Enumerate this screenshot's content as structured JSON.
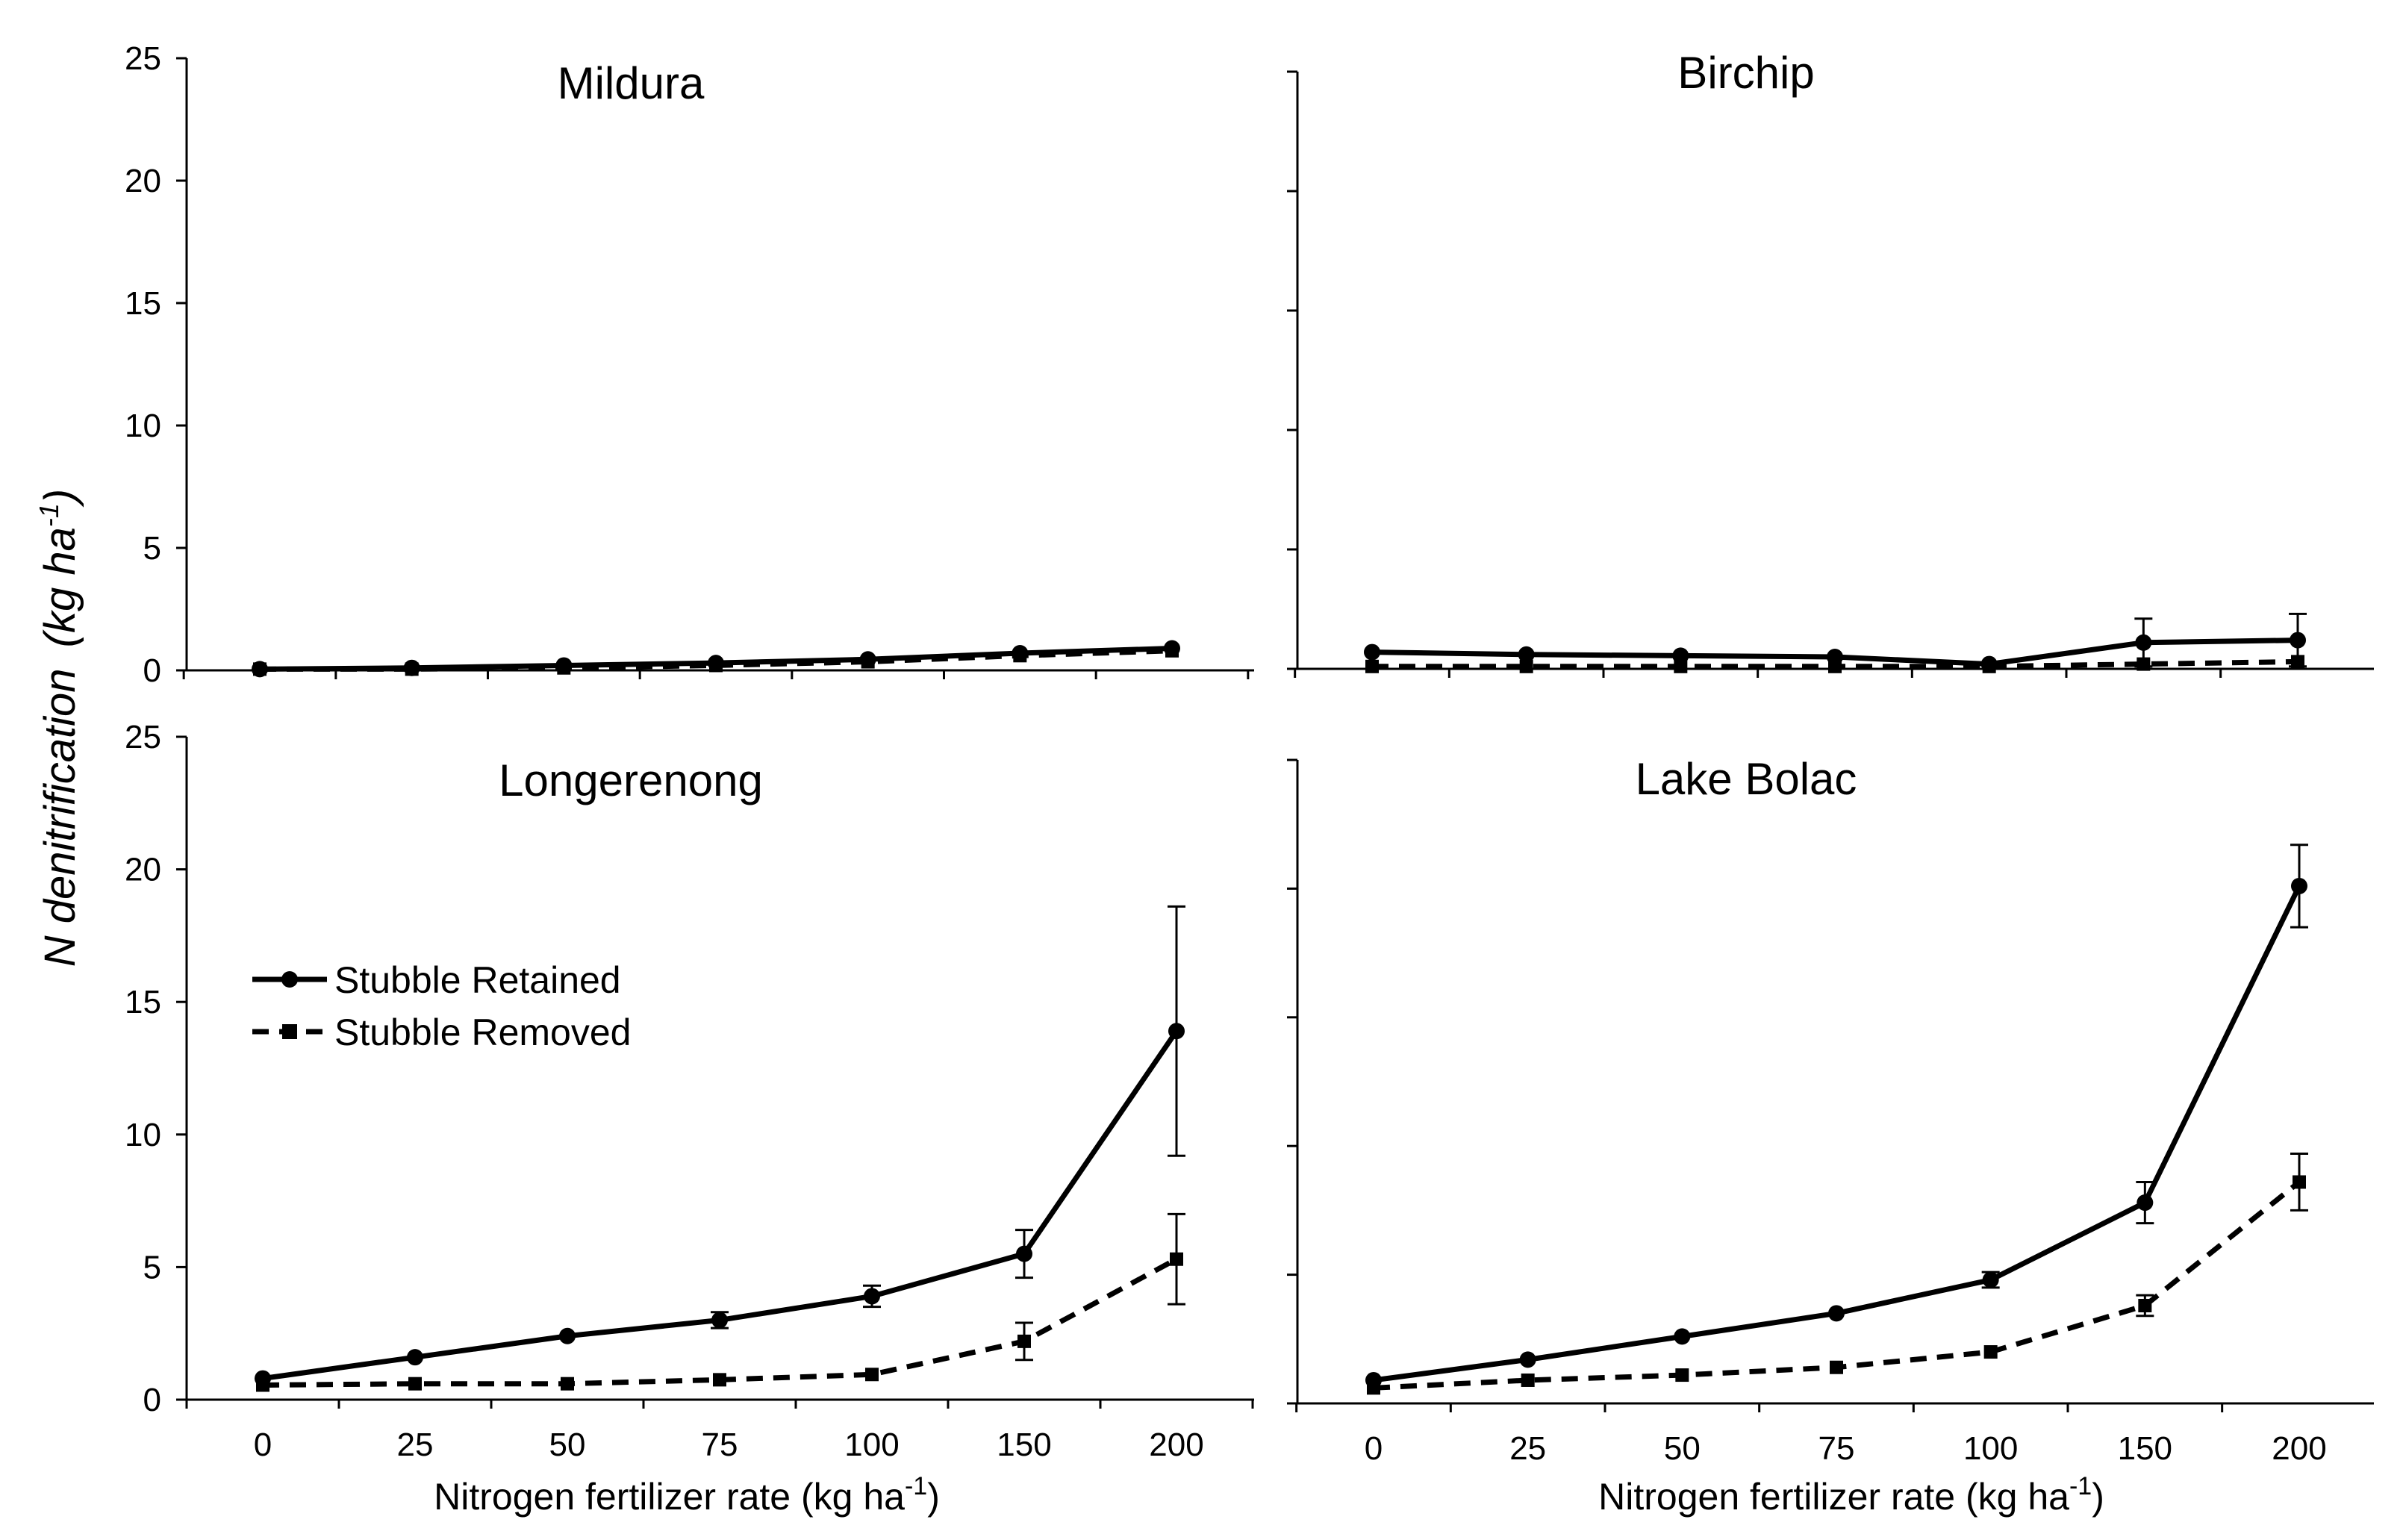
{
  "chart_data": {
    "type": "line",
    "ylabel": "N denitrification",
    "ylabel_unit": "(kg ha",
    "ylabel_sup": "-1",
    "ylabel_close": ")",
    "xlabel": "Nitrogen fertilizer rate (kg ha",
    "xlabel_sup": "-1",
    "xlabel_close": ")",
    "x_categories": [
      "0",
      "25",
      "50",
      "75",
      "100",
      "150",
      "200"
    ],
    "y_ticks": [
      0,
      5,
      10,
      15,
      20,
      25
    ],
    "ylim": [
      0,
      25
    ],
    "legend": [
      {
        "name": "Stubble Retained",
        "marker": "circle",
        "line": "solid"
      },
      {
        "name": "Stubble Removed",
        "marker": "square",
        "line": "dashed"
      }
    ],
    "panels": [
      {
        "title": "Mildura",
        "series": [
          {
            "name": "Stubble Retained",
            "values": [
              0.05,
              0.1,
              0.2,
              0.3,
              0.45,
              0.7,
              0.9
            ],
            "errors": [
              0,
              0,
              0,
              0,
              0,
              0,
              0
            ]
          },
          {
            "name": "Stubble Removed",
            "values": [
              0.05,
              0.05,
              0.1,
              0.2,
              0.35,
              0.6,
              0.8
            ],
            "errors": [
              0,
              0,
              0,
              0,
              0,
              0,
              0
            ]
          }
        ]
      },
      {
        "title": "Birchip",
        "series": [
          {
            "name": "Stubble Retained",
            "values": [
              0.7,
              0.6,
              0.55,
              0.5,
              0.2,
              1.1,
              1.2
            ],
            "errors": [
              0,
              0,
              0,
              0,
              0,
              1.0,
              1.1
            ]
          },
          {
            "name": "Stubble Removed",
            "values": [
              0.1,
              0.1,
              0.1,
              0.1,
              0.1,
              0.2,
              0.3
            ],
            "errors": [
              0,
              0,
              0,
              0,
              0,
              0,
              0
            ]
          }
        ]
      },
      {
        "title": "Longerenong",
        "series": [
          {
            "name": "Stubble Retained",
            "values": [
              0.8,
              1.6,
              2.4,
              3.0,
              3.9,
              5.5,
              13.9
            ],
            "errors": [
              0,
              0,
              0,
              0.3,
              0.4,
              0.9,
              4.7
            ]
          },
          {
            "name": "Stubble Removed",
            "values": [
              0.55,
              0.6,
              0.6,
              0.75,
              0.95,
              2.2,
              5.3
            ],
            "errors": [
              0,
              0,
              0,
              0,
              0,
              0.7,
              1.7
            ]
          }
        ]
      },
      {
        "title": "Lake Bolac",
        "series": [
          {
            "name": "Stubble Retained",
            "values": [
              0.9,
              1.7,
              2.6,
              3.5,
              4.8,
              7.8,
              20.1
            ],
            "errors": [
              0,
              0,
              0,
              0,
              0.3,
              0.8,
              1.6
            ]
          },
          {
            "name": "Stubble Removed",
            "values": [
              0.6,
              0.9,
              1.1,
              1.4,
              2.0,
              3.8,
              8.6
            ],
            "errors": [
              0,
              0,
              0,
              0,
              0,
              0.4,
              1.1
            ]
          }
        ]
      }
    ]
  }
}
